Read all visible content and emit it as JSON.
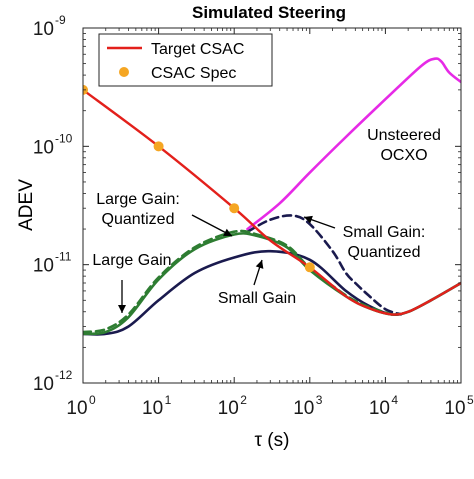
{
  "chart_data": {
    "type": "line",
    "title": "Simulated Steering",
    "xlabel": "τ (s)",
    "ylabel": "ADEV",
    "x_scale": "log",
    "y_scale": "log",
    "xlim": [
      1,
      100000
    ],
    "ylim": [
      1e-12,
      1e-09
    ],
    "x_ticks": [
      {
        "value": 1,
        "base": "10",
        "exp": "0"
      },
      {
        "value": 10,
        "base": "10",
        "exp": "1"
      },
      {
        "value": 100,
        "base": "10",
        "exp": "2"
      },
      {
        "value": 1000,
        "base": "10",
        "exp": "3"
      },
      {
        "value": 10000,
        "base": "10",
        "exp": "4"
      },
      {
        "value": 100000,
        "base": "10",
        "exp": "5"
      }
    ],
    "y_ticks": [
      {
        "value": 1e-12,
        "base": "10",
        "exp": "-12"
      },
      {
        "value": 1e-11,
        "base": "10",
        "exp": "-11"
      },
      {
        "value": 1e-10,
        "base": "10",
        "exp": "-10"
      },
      {
        "value": 1e-09,
        "base": "10",
        "exp": "-9"
      }
    ],
    "grid": false,
    "legend": {
      "position": "top-left",
      "entries": [
        {
          "label": "Target CSAC",
          "color": "#e3201b",
          "marker": "line"
        },
        {
          "label": "CSAC Spec",
          "color": "#f5a623",
          "marker": "dot"
        }
      ]
    },
    "series": [
      {
        "name": "Target CSAC",
        "color": "#e3201b",
        "style": "solid",
        "points": [
          [
            1,
            3e-10
          ],
          [
            10,
            1e-10
          ],
          [
            100,
            3e-11
          ],
          [
            300,
            1.6e-11
          ],
          [
            1000,
            9.5e-12
          ],
          [
            3000,
            5.4e-12
          ],
          [
            6000,
            4.3e-12
          ],
          [
            12000,
            3.8e-12
          ],
          [
            20000,
            4e-12
          ],
          [
            40000,
            5e-12
          ],
          [
            100000,
            7e-12
          ]
        ]
      },
      {
        "name": "CSAC Spec",
        "color": "#f5a623",
        "style": "markers",
        "points": [
          [
            1,
            3e-10
          ],
          [
            10,
            1e-10
          ],
          [
            100,
            3e-11
          ],
          [
            1000,
            9.5e-12
          ]
        ]
      },
      {
        "name": "Unsteered OCXO",
        "color": "#e62ae6",
        "style": "solid",
        "points": [
          [
            150,
            2e-11
          ],
          [
            400,
            3.3e-11
          ],
          [
            1000,
            6e-11
          ],
          [
            3000,
            1.2e-10
          ],
          [
            10000,
            2.5e-10
          ],
          [
            30000,
            4.8e-10
          ],
          [
            45000,
            5.5e-10
          ],
          [
            55000,
            5.2e-10
          ],
          [
            70000,
            4.2e-10
          ],
          [
            100000,
            3.5e-10
          ]
        ]
      },
      {
        "name": "Large Gain",
        "color": "#2e7d32",
        "style": "solid",
        "points": [
          [
            1,
            2.6e-12
          ],
          [
            2,
            2.7e-12
          ],
          [
            4,
            3.6e-12
          ],
          [
            10,
            7.5e-12
          ],
          [
            30,
            1.35e-11
          ],
          [
            100,
            1.8e-11
          ],
          [
            200,
            1.75e-11
          ],
          [
            500,
            1.4e-11
          ],
          [
            1000,
            9e-12
          ],
          [
            3000,
            5.4e-12
          ],
          [
            6000,
            4.3e-12
          ],
          [
            12000,
            3.8e-12
          ],
          [
            20000,
            4e-12
          ],
          [
            40000,
            5e-12
          ],
          [
            100000,
            7e-12
          ]
        ]
      },
      {
        "name": "Large Gain: Quantized",
        "color": "#2e7d32",
        "style": "dashed",
        "points": [
          [
            1,
            2.7e-12
          ],
          [
            2,
            2.85e-12
          ],
          [
            4,
            3.8e-12
          ],
          [
            10,
            7.8e-12
          ],
          [
            30,
            1.4e-11
          ],
          [
            100,
            1.9e-11
          ],
          [
            200,
            1.8e-11
          ],
          [
            500,
            1.45e-11
          ],
          [
            1000,
            9.4e-12
          ],
          [
            3000,
            5.5e-12
          ],
          [
            6000,
            4.4e-12
          ],
          [
            12000,
            3.8e-12
          ]
        ]
      },
      {
        "name": "Small Gain",
        "color": "#1a1a4e",
        "style": "solid",
        "points": [
          [
            1,
            2.6e-12
          ],
          [
            2,
            2.6e-12
          ],
          [
            4,
            3e-12
          ],
          [
            10,
            5e-12
          ],
          [
            30,
            8.5e-12
          ],
          [
            100,
            1.15e-11
          ],
          [
            300,
            1.3e-11
          ],
          [
            1000,
            1.1e-11
          ],
          [
            3000,
            6e-12
          ],
          [
            6000,
            4.5e-12
          ],
          [
            12000,
            3.8e-12
          ],
          [
            20000,
            4e-12
          ],
          [
            40000,
            5e-12
          ],
          [
            100000,
            7e-12
          ]
        ]
      },
      {
        "name": "Small Gain: Quantized",
        "color": "#1a1a4e",
        "style": "dashed",
        "points": [
          [
            150,
            1.9e-11
          ],
          [
            300,
            2.4e-11
          ],
          [
            600,
            2.6e-11
          ],
          [
            1000,
            2.2e-11
          ],
          [
            2000,
            1.3e-11
          ],
          [
            3000,
            8.5e-12
          ],
          [
            4000,
            7e-12
          ],
          [
            6000,
            5.5e-12
          ],
          [
            10000,
            4.2e-12
          ],
          [
            16000,
            3.8e-12
          ]
        ]
      }
    ],
    "annotations": [
      {
        "key": "ocxo",
        "lines": [
          "Unsteered",
          "OCXO"
        ]
      },
      {
        "key": "large_q",
        "lines": [
          "Large Gain:",
          "Quantized"
        ]
      },
      {
        "key": "small_q",
        "lines": [
          "Small Gain:",
          "Quantized"
        ]
      },
      {
        "key": "large",
        "lines": [
          "Large Gain"
        ]
      },
      {
        "key": "small",
        "lines": [
          "Small Gain"
        ]
      }
    ]
  }
}
